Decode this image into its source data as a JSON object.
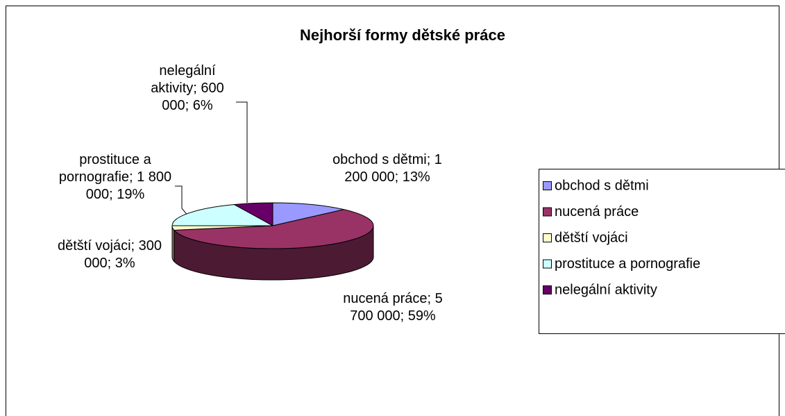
{
  "chart_data": {
    "type": "pie",
    "title": "Nejhorší formy dětské práce",
    "categories": [
      "obchod s dětmi",
      "nucená práce",
      "dětští vojáci",
      "prostituce a pornografie",
      "nelegální aktivity"
    ],
    "values": [
      1200000,
      5700000,
      300000,
      1800000,
      600000
    ],
    "value_labels": [
      "obchod s dětmi; 1 200 000; 13%",
      "nucená práce; 5 700 000; 59%",
      "dětští vojáci; 300 000; 3%",
      "prostituce a pornografie; 1 800 000; 19%",
      "nelegální aktivity; 600 000; 6%"
    ],
    "colors": [
      "#9999ff",
      "#993366",
      "#ffffcc",
      "#ccffff",
      "#660066"
    ],
    "legend": "right"
  }
}
